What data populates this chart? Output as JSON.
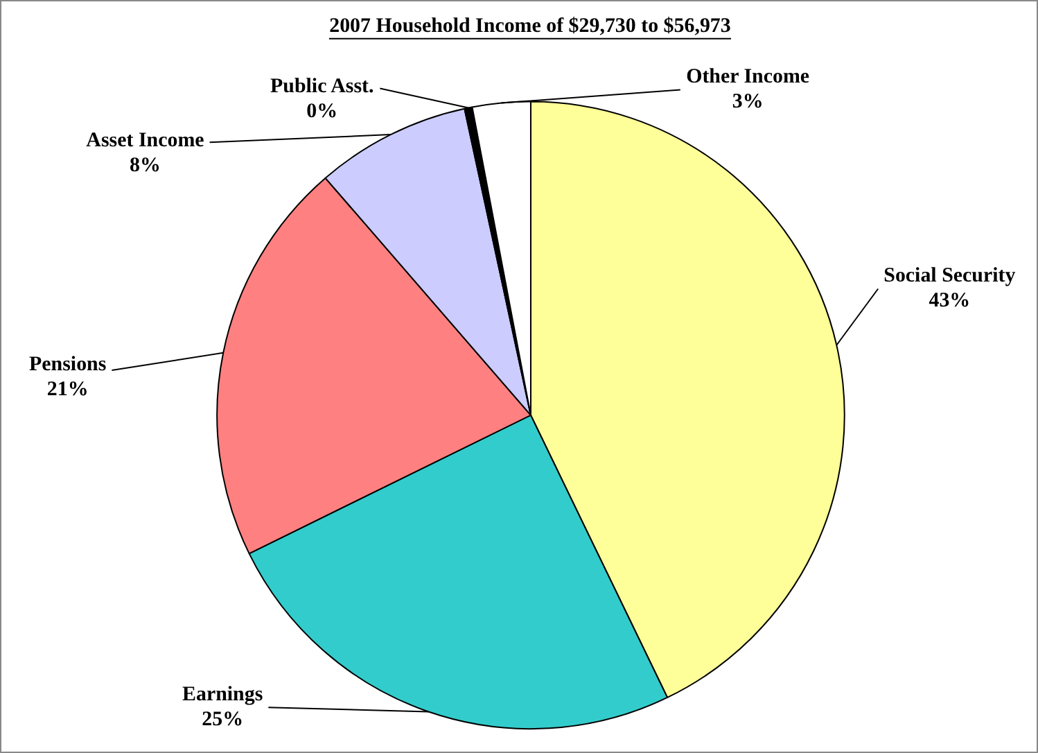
{
  "chart_data": {
    "type": "pie",
    "title": "2007 Household Income of $29,730 to $56,973",
    "categories": [
      "Social Security",
      "Earnings",
      "Pensions",
      "Asset Income",
      "Public Asst.",
      "Other Income"
    ],
    "values": [
      43,
      25,
      21,
      8,
      0.4,
      3
    ],
    "value_labels": [
      "43%",
      "25%",
      "21%",
      "8%",
      "0%",
      "3%"
    ],
    "colors": [
      "#ffff99",
      "#33cccc",
      "#ff8080",
      "#ccccff",
      "#000000",
      "#ffffff"
    ],
    "legend": false
  }
}
